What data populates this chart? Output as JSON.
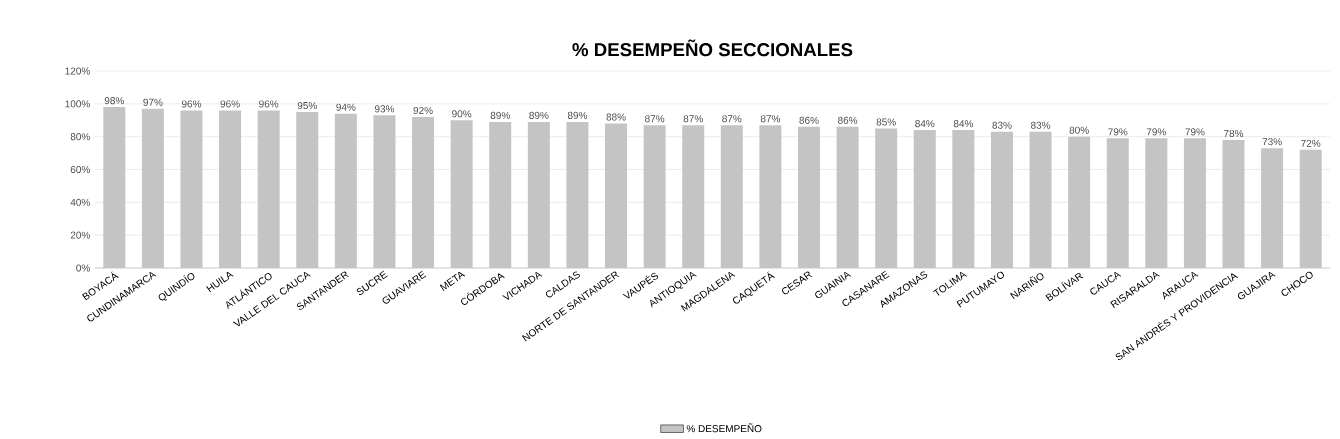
{
  "chart_data": {
    "type": "bar",
    "title": "% DESEMPEÑO SECCIONALES",
    "categories": [
      "BOYACÁ",
      "CUNDINAMARCA",
      "QUINDÍO",
      "HUILA",
      "ATLÁNTICO",
      "VALLE DEL CAUCA",
      "SANTANDER",
      "SUCRE",
      "GUAVIARE",
      "META",
      "CÓRDOBA",
      "VICHADA",
      "CALDAS",
      "NORTE DE SANTANDER",
      "VAUPÉS",
      "ANTIOQUIA",
      "MAGDALENA",
      "CAQUETÁ",
      "CESAR",
      "GUAINIA",
      "CASANARE",
      "AMAZONAS",
      "TOLIMA",
      "PUTUMAYO",
      "NARIÑO",
      "BOLÍVAR",
      "CAUCA",
      "RISARALDA",
      "ARAUCA",
      "SAN ANDRÉS Y PROVIDENCIA",
      "GUAJIRA",
      "CHOCO"
    ],
    "series": [
      {
        "name": "% DESEMPEÑO",
        "color": "#c4c4c4",
        "values": [
          98,
          97,
          96,
          96,
          96,
          95,
          94,
          93,
          92,
          90,
          89,
          89,
          89,
          88,
          87,
          87,
          87,
          87,
          86,
          86,
          85,
          84,
          84,
          83,
          83,
          80,
          79,
          79,
          79,
          78,
          73,
          72
        ],
        "value_labels": [
          "98%",
          "97%",
          "96%",
          "96%",
          "96%",
          "95%",
          "94%",
          "93%",
          "92%",
          "90%",
          "89%",
          "89%",
          "89%",
          "88%",
          "87%",
          "87%",
          "87%",
          "87%",
          "86%",
          "86%",
          "85%",
          "84%",
          "84%",
          "83%",
          "83%",
          "80%",
          "79%",
          "79%",
          "79%",
          "78%",
          "73%",
          "72%"
        ]
      }
    ],
    "ylim": [
      0,
      120
    ],
    "yticks": [
      {
        "value": 0,
        "label": "0%"
      },
      {
        "value": 20,
        "label": "20%"
      },
      {
        "value": 40,
        "label": "40%"
      },
      {
        "value": 60,
        "label": "60%"
      },
      {
        "value": 80,
        "label": "80%"
      },
      {
        "value": 100,
        "label": "100%"
      },
      {
        "value": 120,
        "label": "120%"
      }
    ],
    "grid": "y",
    "legend": "bottom"
  }
}
